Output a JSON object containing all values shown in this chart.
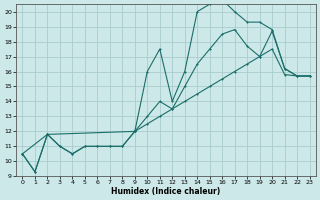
{
  "xlabel": "Humidex (Indice chaleur)",
  "xlim": [
    -0.5,
    23.5
  ],
  "ylim": [
    9,
    20.5
  ],
  "yticks": [
    9,
    10,
    11,
    12,
    13,
    14,
    15,
    16,
    17,
    18,
    19,
    20
  ],
  "xticks": [
    0,
    1,
    2,
    3,
    4,
    5,
    6,
    7,
    8,
    9,
    10,
    11,
    12,
    13,
    14,
    15,
    16,
    17,
    18,
    19,
    20,
    21,
    22,
    23
  ],
  "bg_color": "#cce8e8",
  "grid_color": "#aacccc",
  "line_color": "#1a6e6a",
  "line1_x": [
    0,
    1,
    2,
    3,
    4,
    5,
    6,
    7,
    8,
    9,
    10,
    11,
    12,
    13,
    14,
    15,
    16,
    17,
    18,
    19,
    20,
    21,
    22,
    23
  ],
  "line1_y": [
    10.5,
    9.3,
    11.8,
    11.0,
    10.5,
    11.0,
    11.0,
    11.0,
    11.0,
    12.0,
    16.0,
    17.5,
    14.0,
    16.0,
    20.0,
    20.5,
    20.8,
    20.0,
    19.3,
    19.3,
    18.8,
    16.2,
    15.7,
    15.7
  ],
  "line2_x": [
    0,
    1,
    2,
    3,
    4,
    5,
    6,
    7,
    8,
    9,
    10,
    11,
    12,
    13,
    14,
    15,
    16,
    17,
    18,
    19,
    20,
    21,
    22,
    23
  ],
  "line2_y": [
    10.5,
    9.3,
    11.8,
    11.0,
    10.5,
    11.0,
    11.0,
    11.0,
    11.0,
    12.0,
    13.0,
    14.0,
    13.5,
    15.0,
    16.5,
    17.5,
    18.5,
    18.8,
    17.7,
    17.0,
    18.7,
    16.2,
    15.7,
    15.7
  ],
  "line3_x": [
    0,
    2,
    9,
    10,
    11,
    12,
    13,
    14,
    15,
    16,
    17,
    18,
    19,
    20,
    21,
    22,
    23
  ],
  "line3_y": [
    10.5,
    11.8,
    12.0,
    12.5,
    13.0,
    13.5,
    14.0,
    14.5,
    15.0,
    15.5,
    16.0,
    16.5,
    17.0,
    17.5,
    15.8,
    15.7,
    15.7
  ]
}
